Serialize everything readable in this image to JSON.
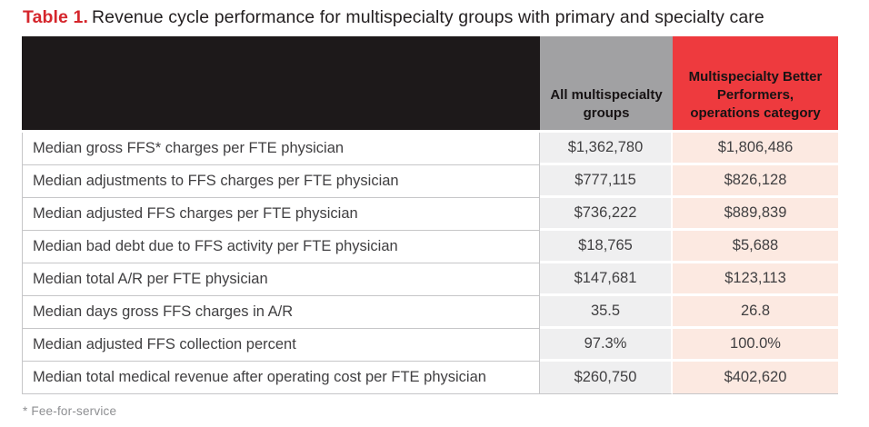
{
  "title": {
    "label": "Table 1.",
    "text": "Revenue cycle performance for multispecialty groups with primary and specialty care"
  },
  "table": {
    "columns": [
      {
        "header": ""
      },
      {
        "header": "All multispecialty groups"
      },
      {
        "header": "Multispecialty Better Performers, operations category"
      }
    ],
    "rows": [
      {
        "metric": "Median gross FFS* charges per FTE physician",
        "all": "$1,362,780",
        "better": "$1,806,486"
      },
      {
        "metric": "Median adjustments to FFS charges per FTE physician",
        "all": "$777,115",
        "better": "$826,128"
      },
      {
        "metric": "Median adjusted FFS charges per FTE physician",
        "all": "$736,222",
        "better": "$889,839"
      },
      {
        "metric": "Median bad debt due to FFS activity per FTE physician",
        "all": "$18,765",
        "better": "$5,688"
      },
      {
        "metric": "Median total A/R per FTE physician",
        "all": "$147,681",
        "better": "$123,113"
      },
      {
        "metric": "Median days gross FFS charges in A/R",
        "all": "35.5",
        "better": "26.8"
      },
      {
        "metric": "Median adjusted FFS collection percent",
        "all": "97.3%",
        "better": "100.0%"
      },
      {
        "metric": "Median total medical revenue after operating cost per FTE physician",
        "all": "$260,750",
        "better": "$402,620"
      }
    ]
  },
  "footnote": "* Fee-for-service",
  "colors": {
    "title-red": "#d5262c",
    "header-black": "#1d191a",
    "header-gray": "#a1a1a3",
    "header-red": "#ee3a3e",
    "cell-gray": "#efeff0",
    "cell-pink": "#fce9e1"
  }
}
